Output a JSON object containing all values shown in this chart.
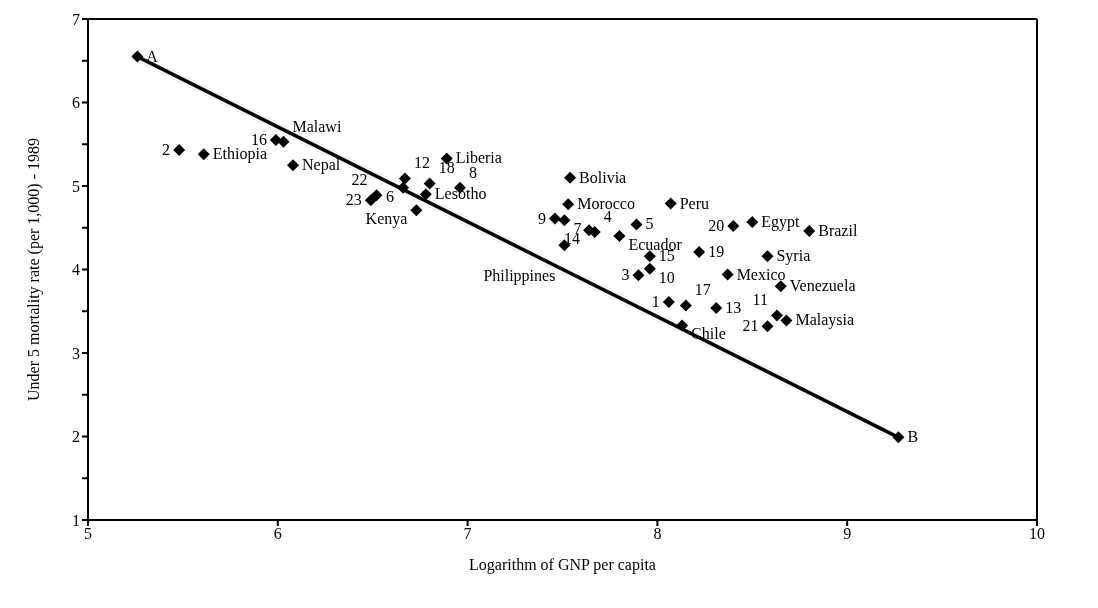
{
  "chart_data": {
    "type": "scatter",
    "xlabel": "Logarithm of GNP per capita",
    "ylabel": "Under 5 mortality rate (per 1,000) - 1989",
    "xlim": [
      5,
      10
    ],
    "xticks": [
      5,
      6,
      7,
      8,
      9,
      10
    ],
    "ylim": [
      1,
      7
    ],
    "yticks": [
      1,
      {
        "value": 1.5,
        "label": null
      },
      2,
      {
        "value": 2.5,
        "label": null
      },
      3,
      {
        "value": 3.5,
        "label": null
      },
      4,
      {
        "value": 4.5,
        "label": null
      },
      5,
      {
        "value": 5.5,
        "label": null
      },
      6,
      {
        "value": 6.5,
        "label": null
      },
      7
    ],
    "grid": false,
    "legend": false,
    "series": [
      {
        "type": "scatter",
        "color": "#000000",
        "marker": "diamond",
        "x": [
          5.26,
          5.48,
          5.61,
          5.99,
          6.03,
          6.08,
          6.49,
          6.52,
          6.66,
          6.67,
          6.8,
          6.96,
          6.78,
          6.73,
          6.89,
          7.54,
          7.53,
          7.46,
          7.51,
          7.64,
          7.67,
          7.8,
          7.89,
          7.51,
          8.07,
          7.96,
          7.96,
          7.9,
          8.06,
          8.15,
          8.13,
          8.31,
          8.4,
          8.5,
          8.22,
          8.37,
          8.58,
          8.8,
          8.65,
          8.63,
          8.68,
          8.58,
          9.27
        ],
        "values": [
          6.55,
          5.43,
          5.38,
          5.55,
          5.53,
          5.25,
          4.83,
          4.89,
          4.98,
          5.09,
          5.03,
          4.98,
          4.9,
          4.71,
          5.33,
          5.1,
          4.78,
          4.61,
          4.59,
          4.47,
          4.45,
          4.4,
          4.54,
          4.29,
          4.79,
          4.16,
          4.01,
          3.93,
          3.61,
          3.57,
          3.33,
          3.54,
          4.52,
          4.57,
          4.21,
          3.94,
          4.16,
          4.46,
          3.8,
          3.45,
          3.39,
          3.32,
          1.99
        ]
      },
      {
        "type": "line",
        "color": "#000000",
        "marker": "none",
        "line_style": "solid",
        "x": [
          5.26,
          9.27
        ],
        "values": [
          6.55,
          1.99
        ]
      }
    ],
    "annotations": [
      {
        "text": "A",
        "x": 5.26,
        "y": 6.55
      },
      {
        "text": "2",
        "x": 5.48,
        "y": 5.43
      },
      {
        "text": "Ethiopia",
        "x": 5.61,
        "y": 5.38
      },
      {
        "text": "16",
        "x": 5.99,
        "y": 5.55
      },
      {
        "text": "Malawi",
        "x": 6.03,
        "y": 5.53
      },
      {
        "text": "Nepal",
        "x": 6.08,
        "y": 5.25
      },
      {
        "text": "23",
        "x": 6.49,
        "y": 4.83
      },
      {
        "text": "22",
        "x": 6.52,
        "y": 4.89
      },
      {
        "text": "6",
        "x": 6.66,
        "y": 4.98
      },
      {
        "text": "12",
        "x": 6.67,
        "y": 5.09
      },
      {
        "text": "18",
        "x": 6.8,
        "y": 5.03
      },
      {
        "text": "8",
        "x": 6.96,
        "y": 4.98
      },
      {
        "text": "Lesotho",
        "x": 6.78,
        "y": 4.9
      },
      {
        "text": "Kenya",
        "x": 6.73,
        "y": 4.71
      },
      {
        "text": "Liberia",
        "x": 6.89,
        "y": 5.33
      },
      {
        "text": "Bolivia",
        "x": 7.54,
        "y": 5.1
      },
      {
        "text": "Morocco",
        "x": 7.53,
        "y": 4.78
      },
      {
        "text": "9",
        "x": 7.46,
        "y": 4.61
      },
      {
        "text": "7",
        "x": 7.51,
        "y": 4.59
      },
      {
        "text": "14",
        "x": 7.64,
        "y": 4.47
      },
      {
        "text": "4",
        "x": 7.67,
        "y": 4.45
      },
      {
        "text": "Ecuador",
        "x": 7.8,
        "y": 4.4
      },
      {
        "text": "5",
        "x": 7.89,
        "y": 4.54
      },
      {
        "text": "Philippines",
        "x": 7.51,
        "y": 4.29
      },
      {
        "text": "Peru",
        "x": 8.07,
        "y": 4.79
      },
      {
        "text": "15",
        "x": 7.96,
        "y": 4.16
      },
      {
        "text": "10",
        "x": 7.96,
        "y": 4.01
      },
      {
        "text": "3",
        "x": 7.9,
        "y": 3.93
      },
      {
        "text": "1",
        "x": 8.06,
        "y": 3.61
      },
      {
        "text": "17",
        "x": 8.15,
        "y": 3.57
      },
      {
        "text": "Chile",
        "x": 8.13,
        "y": 3.33
      },
      {
        "text": "13",
        "x": 8.31,
        "y": 3.54
      },
      {
        "text": "20",
        "x": 8.4,
        "y": 4.52
      },
      {
        "text": "Egypt",
        "x": 8.5,
        "y": 4.57
      },
      {
        "text": "19",
        "x": 8.22,
        "y": 4.21
      },
      {
        "text": "Mexico",
        "x": 8.37,
        "y": 3.94
      },
      {
        "text": "Syria",
        "x": 8.58,
        "y": 4.16
      },
      {
        "text": "Brazil",
        "x": 8.8,
        "y": 4.46
      },
      {
        "text": "Venezuela",
        "x": 8.65,
        "y": 3.8
      },
      {
        "text": "11",
        "x": 8.63,
        "y": 3.45
      },
      {
        "text": "Malaysia",
        "x": 8.68,
        "y": 3.39
      },
      {
        "text": "21",
        "x": 8.58,
        "y": 3.32
      },
      {
        "text": "B",
        "x": 9.27,
        "y": 1.99
      }
    ]
  }
}
